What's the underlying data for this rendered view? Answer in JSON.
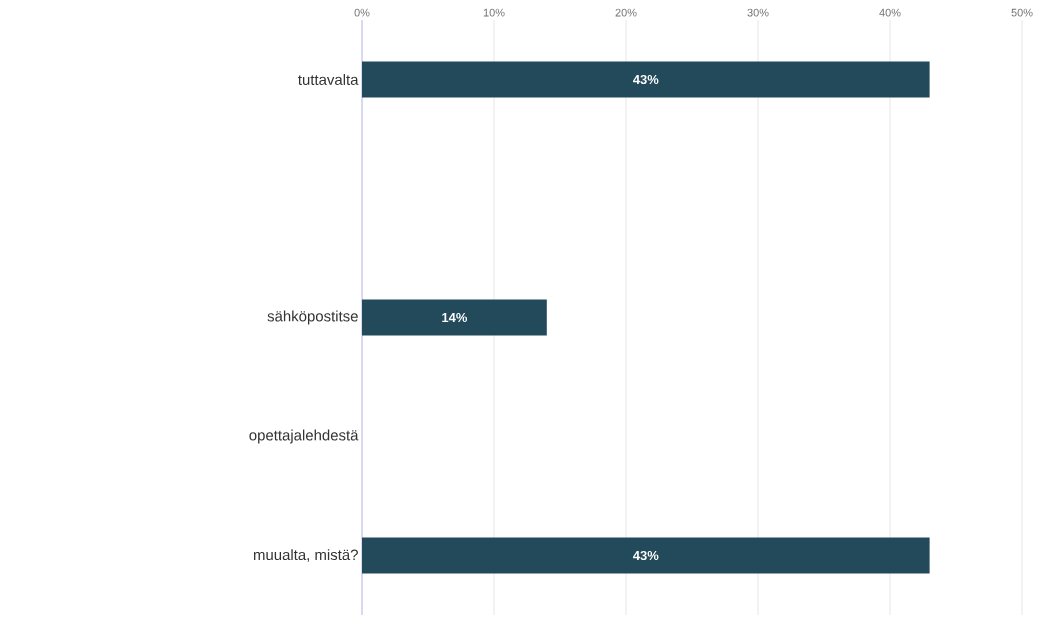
{
  "chart_data": {
    "type": "bar",
    "orientation": "horizontal",
    "categories": [
      "tuttavalta",
      null,
      "sähköpostitse",
      "opettajalehdestä",
      "muualta, mistä?"
    ],
    "values": [
      43,
      0,
      14,
      0,
      43
    ],
    "value_labels": [
      "43%",
      null,
      "14%",
      null,
      "43%"
    ],
    "color": "#234a5a",
    "xlim": [
      0,
      50
    ],
    "xticks": [
      {
        "value": 0,
        "label": "0%"
      },
      {
        "value": 10,
        "label": "10%"
      },
      {
        "value": 20,
        "label": "20%"
      },
      {
        "value": 30,
        "label": "30%"
      },
      {
        "value": 40,
        "label": "40%"
      },
      {
        "value": 50,
        "label": "50%"
      }
    ],
    "grid": "x"
  }
}
